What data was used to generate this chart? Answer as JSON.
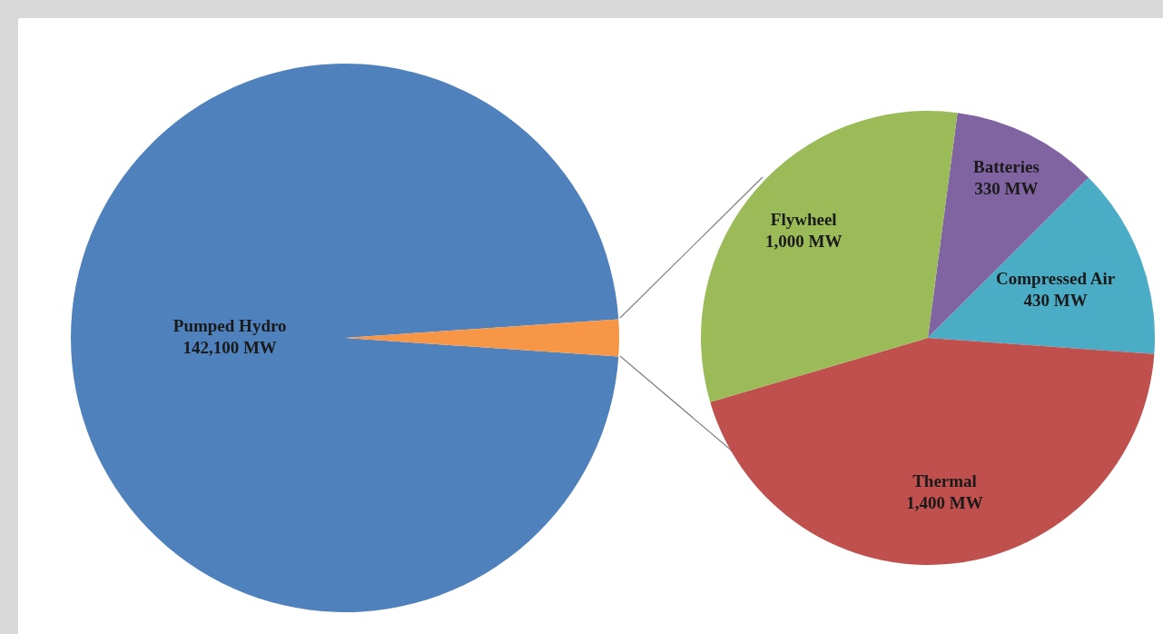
{
  "chart_data": [
    {
      "type": "pie",
      "categories": [
        "Pumped Hydro",
        null
      ],
      "values": [
        142100,
        3160
      ],
      "colors": [
        "#4f81bd",
        "#f79646"
      ],
      "value_labels": [
        "142,100 MW",
        null
      ],
      "legend": false
    },
    {
      "type": "pie",
      "categories": [
        "Batteries",
        "Compressed Air",
        "Thermal",
        "Flywheel"
      ],
      "values": [
        330,
        430,
        1400,
        1000
      ],
      "colors": [
        "#8064a2",
        "#4bacc6",
        "#c0504d",
        "#9bbb59"
      ],
      "value_labels": [
        "330 MW",
        "430 MW",
        "1,400 MW",
        "1,000 MW"
      ],
      "legend": false
    }
  ]
}
